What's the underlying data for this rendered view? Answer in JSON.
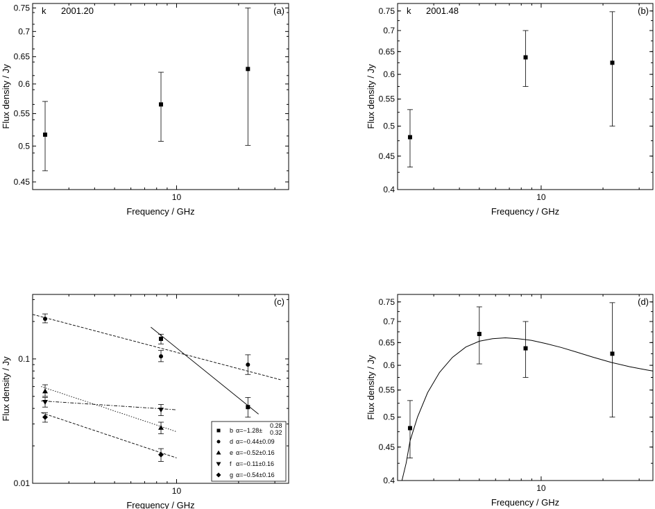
{
  "chart_data": [
    {
      "panel": "(a)",
      "type": "scatter",
      "source_label": "k",
      "epoch_label": "2001.20",
      "xlabel": "Frequency / GHz",
      "ylabel": "Flux density / Jy",
      "xscale": "log",
      "yscale": "log",
      "xlim": [
        2.0,
        35
      ],
      "ylim": [
        0.44,
        0.76
      ],
      "yticks": [
        0.45,
        0.5,
        0.55,
        0.6,
        0.65,
        0.7,
        0.75
      ],
      "ytick_labels": [
        "0.45",
        "0.5",
        "0.55",
        "0.6",
        "0.65",
        "0.7",
        "0.75"
      ],
      "xticks": [
        10
      ],
      "xtick_labels": [
        "10"
      ],
      "series": [
        {
          "marker": "square",
          "x": [
            2.3,
            8.4,
            22.2
          ],
          "y": [
            0.517,
            0.565,
            0.627
          ],
          "err_low": [
            0.465,
            0.507,
            0.501
          ],
          "err_high": [
            0.57,
            0.621,
            0.75
          ]
        }
      ]
    },
    {
      "panel": "(b)",
      "type": "scatter",
      "source_label": "k",
      "epoch_label": "2001.48",
      "xlabel": "Frequency / GHz",
      "ylabel": "Flux density / Jy",
      "xscale": "log",
      "yscale": "log",
      "xlim": [
        2.0,
        35
      ],
      "ylim": [
        0.4,
        0.77
      ],
      "yticks": [
        0.4,
        0.45,
        0.5,
        0.55,
        0.6,
        0.65,
        0.7,
        0.75
      ],
      "ytick_labels": [
        "0.4",
        "0.45",
        "0.5",
        "0.55",
        "0.6",
        "0.65",
        "0.7",
        "0.75"
      ],
      "xticks": [
        10
      ],
      "xtick_labels": [
        "10"
      ],
      "series": [
        {
          "marker": "square",
          "x": [
            2.3,
            8.4,
            22.2
          ],
          "y": [
            0.481,
            0.637,
            0.625
          ],
          "err_low": [
            0.433,
            0.575,
            0.5
          ],
          "err_high": [
            0.53,
            0.7,
            0.748
          ]
        }
      ]
    },
    {
      "panel": "(c)",
      "type": "scatter",
      "xlabel": "Frequency / GHz",
      "ylabel": "Flux density / Jy",
      "xscale": "log",
      "yscale": "log",
      "xlim": [
        2.0,
        35
      ],
      "ylim": [
        0.01,
        0.33
      ],
      "yticks": [
        0.01,
        0.1
      ],
      "ytick_labels": [
        "0.01",
        "0.1"
      ],
      "xticks": [
        10
      ],
      "xtick_labels": [
        "10"
      ],
      "series": [
        {
          "name": "b",
          "alpha_label": "α=−1.28±",
          "alpha_sup": "0.28",
          "alpha_sub": "0.32",
          "marker": "square",
          "x": [
            8.4,
            22.2
          ],
          "y": [
            0.145,
            0.041
          ],
          "err_low": [
            0.132,
            0.034
          ],
          "err_high": [
            0.158,
            0.049
          ],
          "fit_style": "solid",
          "fit_x": [
            7.5,
            25
          ],
          "fit_y": [
            0.18,
            0.036
          ]
        },
        {
          "name": "d",
          "alpha_label": "α=−0.44±0.09",
          "marker": "circle",
          "x": [
            2.3,
            8.4,
            22.2
          ],
          "y": [
            0.21,
            0.105,
            0.09
          ],
          "err_low": [
            0.195,
            0.095,
            0.075
          ],
          "err_high": [
            0.23,
            0.117,
            0.108
          ],
          "fit_style": "dashed",
          "fit_x": [
            2.0,
            32
          ],
          "fit_y": [
            0.228,
            0.068
          ]
        },
        {
          "name": "e",
          "alpha_label": "α=−0.52±0.16",
          "marker": "triangle-up",
          "x": [
            2.3,
            8.4
          ],
          "y": [
            0.055,
            0.028
          ],
          "err_low": [
            0.05,
            0.025
          ],
          "err_high": [
            0.062,
            0.031
          ],
          "fit_style": "dotted",
          "fit_x": [
            2.2,
            10
          ],
          "fit_y": [
            0.06,
            0.026
          ]
        },
        {
          "name": "f",
          "alpha_label": "α=−0.11±0.16",
          "marker": "triangle-down",
          "x": [
            2.3,
            8.4
          ],
          "y": [
            0.045,
            0.039
          ],
          "err_low": [
            0.041,
            0.035
          ],
          "err_high": [
            0.049,
            0.043
          ],
          "fit_style": "dashdot",
          "fit_x": [
            2.2,
            10
          ],
          "fit_y": [
            0.046,
            0.039
          ]
        },
        {
          "name": "g",
          "alpha_label": "α=−0.54±0.16",
          "marker": "diamond",
          "x": [
            2.3,
            8.4
          ],
          "y": [
            0.034,
            0.017
          ],
          "err_low": [
            0.031,
            0.015
          ],
          "err_high": [
            0.037,
            0.019
          ],
          "fit_style": "dashed",
          "fit_x": [
            2.2,
            10
          ],
          "fit_y": [
            0.037,
            0.016
          ]
        }
      ]
    },
    {
      "panel": "(d)",
      "type": "scatter",
      "xlabel": "Frequency / GHz",
      "ylabel": "Flux density / Jy",
      "xscale": "log",
      "yscale": "log",
      "xlim": [
        2.0,
        35
      ],
      "ylim": [
        0.4,
        0.77
      ],
      "yticks": [
        0.4,
        0.45,
        0.5,
        0.55,
        0.6,
        0.65,
        0.7,
        0.75
      ],
      "ytick_labels": [
        "0.4",
        "0.45",
        "0.5",
        "0.55",
        "0.6",
        "0.65",
        "0.7",
        "0.75"
      ],
      "xticks": [
        10
      ],
      "xtick_labels": [
        "10"
      ],
      "series": [
        {
          "marker": "square",
          "x": [
            2.3,
            5.0,
            8.4,
            22.2
          ],
          "y": [
            0.481,
            0.67,
            0.637,
            0.625
          ],
          "err_low": [
            0.433,
            0.603,
            0.575,
            0.5
          ],
          "err_high": [
            0.53,
            0.737,
            0.7,
            0.748
          ]
        }
      ],
      "fit_curve": {
        "x": [
          2.1,
          2.2,
          2.3,
          2.5,
          2.8,
          3.2,
          3.7,
          4.3,
          5.0,
          5.8,
          6.7,
          7.7,
          9.0,
          10.5,
          12.5,
          15,
          18,
          22,
          27,
          33,
          35
        ],
        "y": [
          0.39,
          0.425,
          0.46,
          0.5,
          0.545,
          0.585,
          0.617,
          0.64,
          0.653,
          0.659,
          0.661,
          0.659,
          0.655,
          0.648,
          0.639,
          0.628,
          0.617,
          0.606,
          0.597,
          0.59,
          0.588
        ]
      }
    }
  ]
}
